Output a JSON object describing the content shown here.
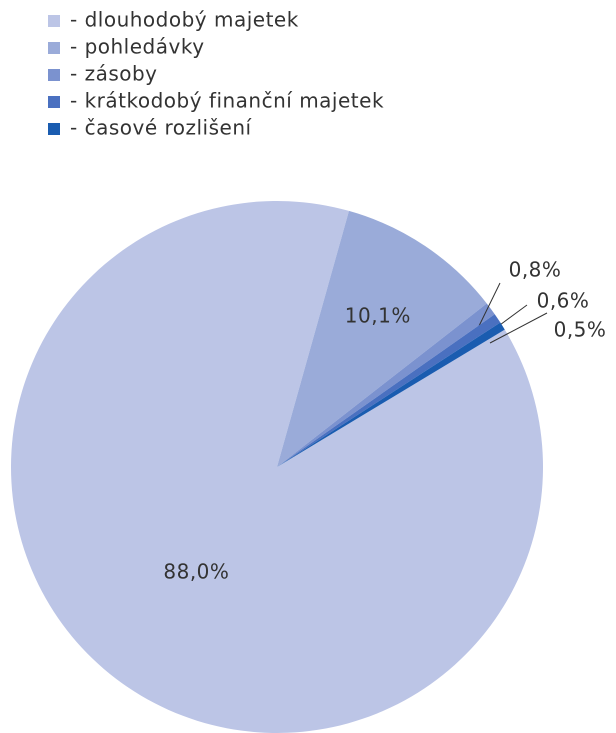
{
  "chart_data": {
    "type": "pie",
    "series": [
      {
        "name": "- dlouhodobý majetek",
        "color": "#bcc5e6",
        "values": [
          88.0
        ],
        "value_labels": [
          "88,0%"
        ]
      },
      {
        "name": "- pohledávky",
        "color": "#9aabd9",
        "values": [
          10.1
        ],
        "value_labels": [
          "10,1%"
        ]
      },
      {
        "name": "- zásoby",
        "color": "#7b92cf",
        "values": [
          0.8
        ],
        "value_labels": [
          "0,8%"
        ]
      },
      {
        "name": "- krátkodobý finanční majetek",
        "color": "#4a70c0",
        "values": [
          0.6
        ],
        "value_labels": [
          "0,6%"
        ]
      },
      {
        "name": "- časové rozlišení",
        "color": "#1a5cb0",
        "values": [
          0.5
        ],
        "value_labels": [
          "0,5%"
        ]
      }
    ],
    "legend": "top-left"
  }
}
